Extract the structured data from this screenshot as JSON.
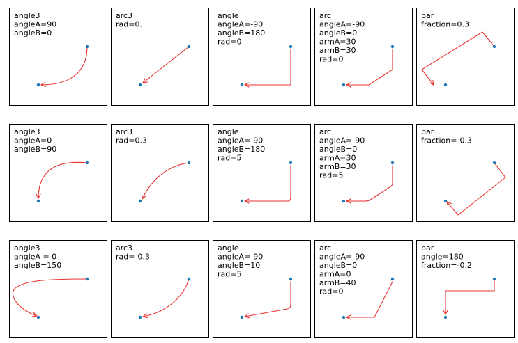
{
  "colors": {
    "point": "#1f77b4",
    "arrow": "#e8312f",
    "frame": "#000000"
  },
  "rows": [
    [
      {
        "lines": [
          "angle3",
          "angleA=90",
          "angleB=0"
        ],
        "style": "angle3"
      },
      {
        "lines": [
          "arc3",
          "rad=0."
        ],
        "style": "arc3-straight"
      },
      {
        "lines": [
          "angle",
          "angleA=-90",
          "angleB=180",
          "rad=0"
        ],
        "style": "angle-sharp"
      },
      {
        "lines": [
          "arc",
          "angleA=-90",
          "angleB=0",
          "armA=30",
          "armB=30",
          "rad=0"
        ],
        "style": "arc-sharp"
      },
      {
        "lines": [
          "bar",
          "fraction=0.3"
        ],
        "style": "bar-pos"
      }
    ],
    [
      {
        "lines": [
          "angle3",
          "angleA=0",
          "angleB=90"
        ],
        "style": "angle3-b"
      },
      {
        "lines": [
          "arc3",
          "rad=0.3"
        ],
        "style": "arc3-pos"
      },
      {
        "lines": [
          "angle",
          "angleA=-90",
          "angleB=180",
          "rad=5"
        ],
        "style": "angle-round"
      },
      {
        "lines": [
          "arc",
          "angleA=-90",
          "angleB=0",
          "armA=30",
          "armB=30",
          "rad=5"
        ],
        "style": "arc-round"
      },
      {
        "lines": [
          "bar",
          "fraction=-0.3"
        ],
        "style": "bar-neg"
      }
    ],
    [
      {
        "lines": [
          "angle3",
          "angleA = 0",
          "angleB=150"
        ],
        "style": "angle3-c"
      },
      {
        "lines": [
          "arc3",
          "rad=-0.3"
        ],
        "style": "arc3-neg"
      },
      {
        "lines": [
          "angle",
          "angleA=-90",
          "angleB=10",
          "rad=5"
        ],
        "style": "angle-10"
      },
      {
        "lines": [
          "arc",
          "angleA=-90",
          "angleB=0",
          "armA=0",
          "armB=40",
          "rad=0"
        ],
        "style": "arc-armb40"
      },
      {
        "lines": [
          "bar",
          "angle=180",
          "fraction=-0.2"
        ],
        "style": "bar-180"
      }
    ]
  ]
}
